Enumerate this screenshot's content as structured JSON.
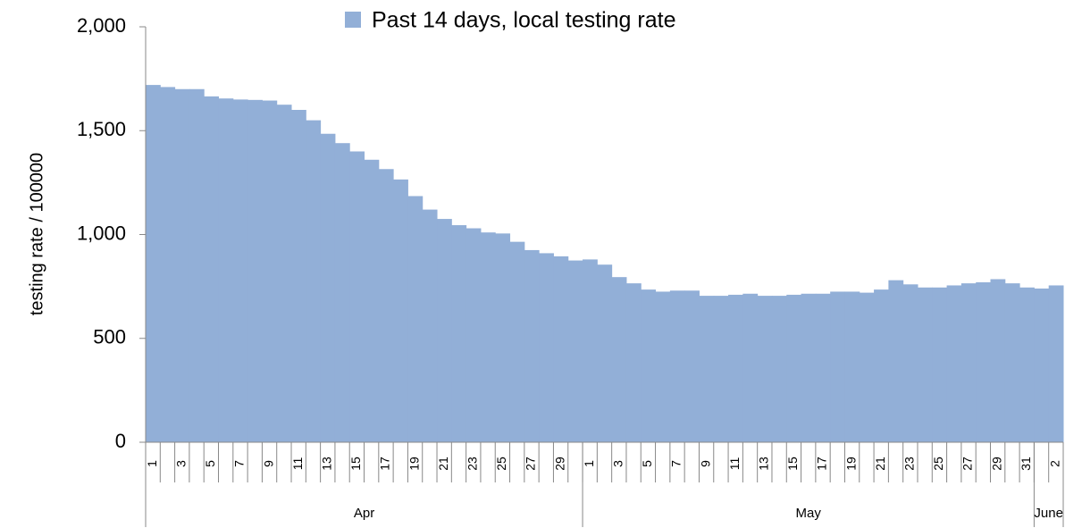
{
  "chart_data": {
    "type": "bar",
    "legend": "Past 14 days, local testing rate",
    "y_label": "testing rate / 100000",
    "color": "#92afd7",
    "categories": [
      "1",
      null,
      "3",
      null,
      "5",
      null,
      "7",
      null,
      "9",
      null,
      "11",
      null,
      "13",
      null,
      "15",
      null,
      "17",
      null,
      "19",
      null,
      "21",
      null,
      "23",
      null,
      "25",
      null,
      "27",
      null,
      "29",
      null,
      "1",
      null,
      "3",
      null,
      "5",
      null,
      "7",
      null,
      "9",
      null,
      "11",
      null,
      "13",
      null,
      "15",
      null,
      "17",
      null,
      "19",
      null,
      "21",
      null,
      "23",
      null,
      "25",
      null,
      "27",
      null,
      "29",
      null,
      "31",
      null,
      "2"
    ],
    "groups": [
      "Apr",
      "May",
      "June"
    ],
    "values": [
      1720,
      1710,
      1700,
      1700,
      1665,
      1655,
      1650,
      1648,
      1645,
      1625,
      1600,
      1550,
      1485,
      1440,
      1400,
      1360,
      1315,
      1265,
      1185,
      1120,
      1075,
      1045,
      1030,
      1010,
      1005,
      965,
      925,
      910,
      895,
      875,
      880,
      855,
      795,
      765,
      735,
      725,
      730,
      730,
      705,
      705,
      710,
      715,
      705,
      705,
      710,
      715,
      715,
      725,
      725,
      720,
      735,
      780,
      760,
      745,
      745,
      755,
      765,
      770,
      785,
      765,
      745,
      740,
      755
    ],
    "ylim": [
      0,
      2000
    ],
    "yticks": [
      0,
      500,
      {
        "value": 1000,
        "label": "1,000"
      },
      {
        "value": 1500,
        "label": "1,500"
      },
      {
        "value": 2000,
        "label": "2,000"
      }
    ]
  }
}
